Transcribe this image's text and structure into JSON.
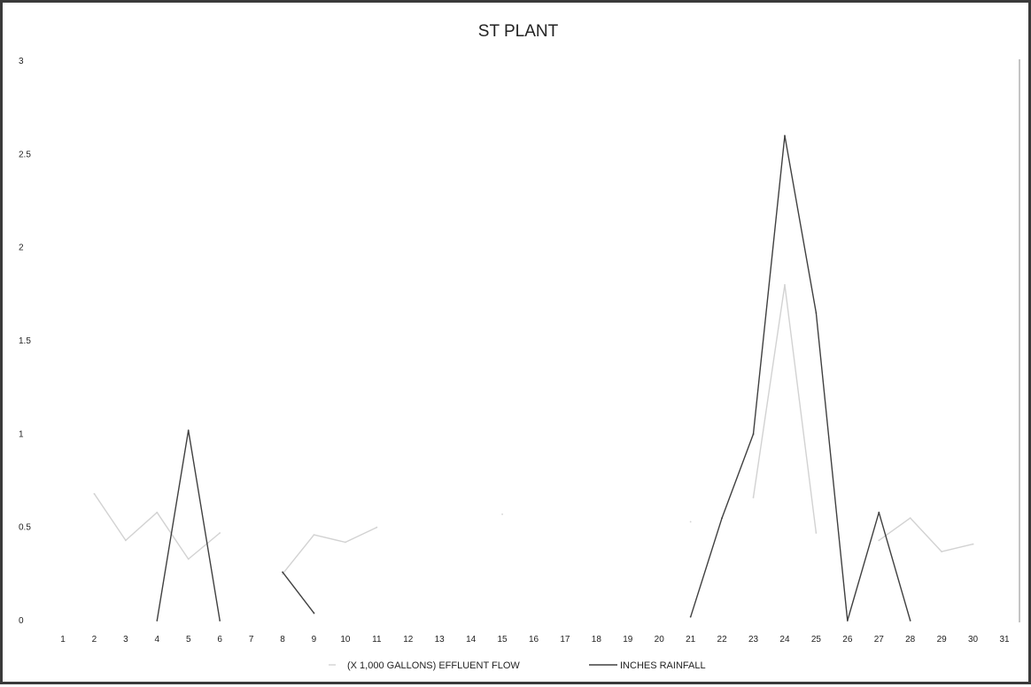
{
  "chart_data": {
    "type": "line",
    "title": "ST PLANT",
    "xlabel": "",
    "ylabel": "",
    "categories": [
      "1",
      "2",
      "3",
      "4",
      "5",
      "6",
      "7",
      "8",
      "9",
      "10",
      "11",
      "12",
      "13",
      "14",
      "15",
      "16",
      "17",
      "18",
      "19",
      "20",
      "21",
      "22",
      "23",
      "24",
      "25",
      "26",
      "27",
      "28",
      "29",
      "30",
      "31"
    ],
    "ylim": [
      0,
      3
    ],
    "yticks": [
      "0",
      "0.5",
      "1",
      "1.5",
      "2",
      "2.5",
      "3"
    ],
    "grid": false,
    "legend_position": "bottom",
    "series": [
      {
        "name": "(X 1,000 GALLONS) EFFLUENT FLOW",
        "color": "#d2d2d2",
        "dash": "none",
        "values": [
          null,
          0.68,
          0.43,
          0.58,
          0.33,
          0.47,
          null,
          0.25,
          0.46,
          0.42,
          0.5,
          null,
          null,
          null,
          0.57,
          null,
          null,
          null,
          null,
          null,
          0.53,
          null,
          0.66,
          1.8,
          0.47,
          null,
          0.43,
          0.55,
          0.37,
          0.41,
          null
        ]
      },
      {
        "name": "INCHES RAINFALL",
        "color": "#404040",
        "dash": "none",
        "values": [
          null,
          null,
          null,
          0,
          1.02,
          0,
          null,
          0.26,
          0.04,
          null,
          null,
          null,
          null,
          null,
          null,
          null,
          null,
          null,
          null,
          null,
          0.02,
          0.55,
          1.0,
          2.6,
          1.65,
          0,
          0.58,
          0,
          null,
          null,
          null
        ]
      }
    ]
  }
}
